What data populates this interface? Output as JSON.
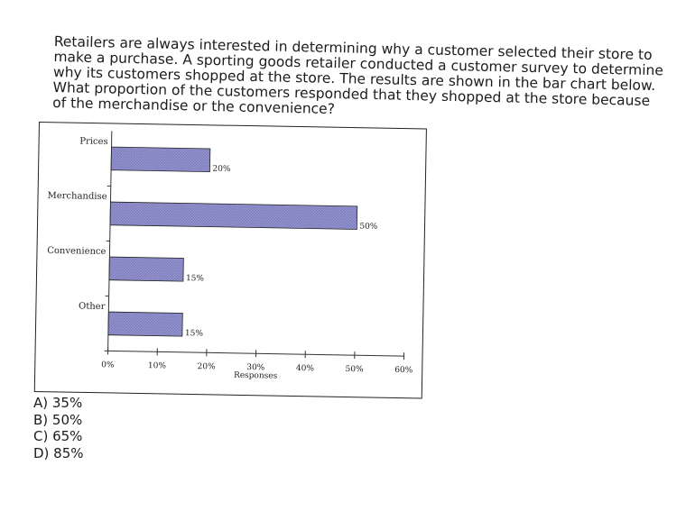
{
  "question": {
    "lines": [
      "Retailers are always interested in determining why a customer selected their store to",
      "make a purchase. A sporting goods retailer conducted a customer survey to determine",
      "why its customers shopped at the store. The results are shown in the bar chart below.",
      "What proportion of the customers responded that they shopped at the store because",
      "of the merchandise or the convenience?"
    ]
  },
  "chart_data": {
    "type": "bar",
    "orientation": "horizontal",
    "categories": [
      "Prices",
      "Merchandise",
      "Convenience",
      "Other"
    ],
    "values": [
      20,
      50,
      15,
      15
    ],
    "data_labels": [
      "20%",
      "50%",
      "15%",
      "15%"
    ],
    "xlabel": "Responses",
    "xlim": [
      0,
      60
    ],
    "x_ticks": [
      0,
      10,
      20,
      30,
      40,
      50,
      60
    ],
    "x_tick_labels": [
      "0%",
      "10%",
      "20%",
      "30%",
      "40%",
      "50%",
      "60%"
    ],
    "bar_color": "#7b7bbf",
    "grid": false,
    "legend": "none"
  },
  "answers": [
    "A) 35%",
    "B) 50%",
    "C) 65%",
    "D) 85%"
  ]
}
